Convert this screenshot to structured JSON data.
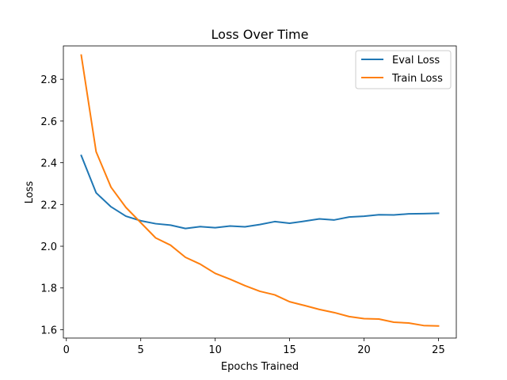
{
  "chart_data": {
    "type": "line",
    "title": "Loss Over Time",
    "xlabel": "Epochs Trained",
    "ylabel": "Loss",
    "xlim": [
      -0.2,
      26.2
    ],
    "ylim": [
      1.56,
      2.96
    ],
    "xticks": [
      0,
      5,
      10,
      15,
      20,
      25
    ],
    "yticks": [
      1.6,
      1.8,
      2.0,
      2.2,
      2.4,
      2.6,
      2.8
    ],
    "ytick_labels": [
      "1.6",
      "1.8",
      "2.0",
      "2.2",
      "2.4",
      "2.6",
      "2.8"
    ],
    "grid": false,
    "legend_position": "top-right",
    "x": [
      1,
      2,
      3,
      4,
      5,
      6,
      7,
      8,
      9,
      10,
      11,
      12,
      13,
      14,
      15,
      16,
      17,
      18,
      19,
      20,
      21,
      22,
      23,
      24,
      25
    ],
    "series": [
      {
        "name": "Eval Loss",
        "color": "#1f77b4",
        "values": [
          2.435,
          2.256,
          2.189,
          2.144,
          2.122,
          2.108,
          2.101,
          2.085,
          2.094,
          2.089,
          2.097,
          2.093,
          2.104,
          2.118,
          2.11,
          2.12,
          2.131,
          2.126,
          2.14,
          2.144,
          2.151,
          2.15,
          2.155,
          2.156,
          2.158
        ]
      },
      {
        "name": "Train Loss",
        "color": "#ff7f0e",
        "values": [
          2.916,
          2.453,
          2.283,
          2.186,
          2.113,
          2.04,
          2.005,
          1.947,
          1.914,
          1.87,
          1.842,
          1.811,
          1.784,
          1.767,
          1.734,
          1.716,
          1.697,
          1.682,
          1.663,
          1.653,
          1.651,
          1.636,
          1.632,
          1.62,
          1.618
        ]
      }
    ]
  }
}
